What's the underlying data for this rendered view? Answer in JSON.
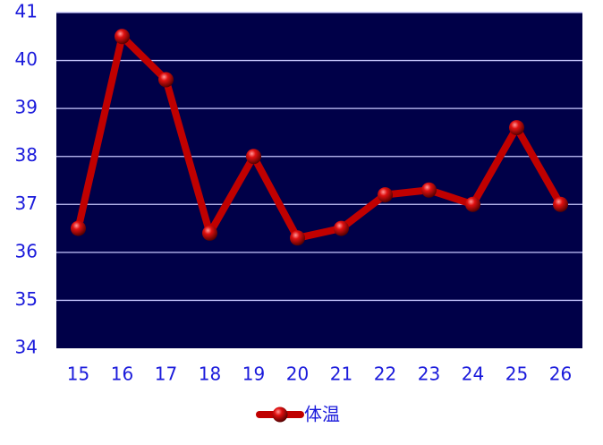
{
  "chart_data": {
    "type": "line",
    "categories": [
      "15",
      "16",
      "17",
      "18",
      "19",
      "20",
      "21",
      "22",
      "23",
      "24",
      "25",
      "26"
    ],
    "series": [
      {
        "name": "体温",
        "color": "#c00000",
        "values": [
          36.5,
          40.5,
          39.6,
          36.4,
          38.0,
          36.3,
          36.5,
          37.2,
          37.3,
          37.0,
          38.6,
          37.0
        ]
      }
    ],
    "ylim": [
      34,
      41
    ],
    "yticks": [
      34,
      35,
      36,
      37,
      38,
      39,
      40,
      41
    ],
    "grid": true,
    "legend": "bottom"
  }
}
